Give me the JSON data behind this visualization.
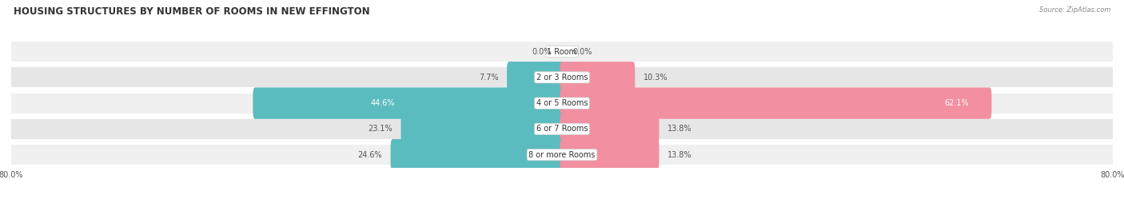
{
  "title": "HOUSING STRUCTURES BY NUMBER OF ROOMS IN NEW EFFINGTON",
  "source": "Source: ZipAtlas.com",
  "categories": [
    "1 Room",
    "2 or 3 Rooms",
    "4 or 5 Rooms",
    "6 or 7 Rooms",
    "8 or more Rooms"
  ],
  "owner_values": [
    0.0,
    7.7,
    44.6,
    23.1,
    24.6
  ],
  "renter_values": [
    0.0,
    10.3,
    62.1,
    13.8,
    13.8
  ],
  "owner_color": "#5bbcbf",
  "renter_color": "#f28fa0",
  "xlim": [
    -80.0,
    80.0
  ],
  "bar_height": 0.62,
  "title_fontsize": 8.5,
  "value_fontsize": 7,
  "cat_fontsize": 7,
  "background_color": "#ffffff",
  "row_bg_even": "#f0f0f0",
  "row_bg_odd": "#e6e6e6",
  "white_label_threshold": 30
}
